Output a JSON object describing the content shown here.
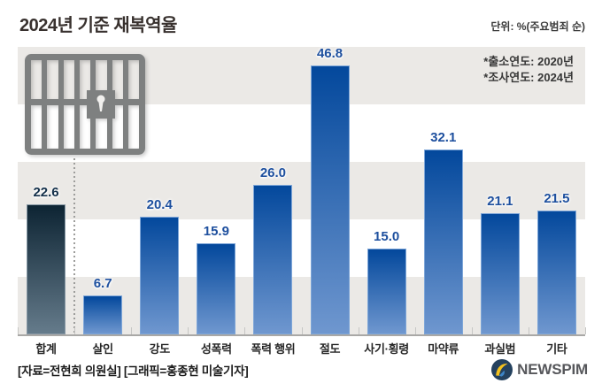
{
  "header": {
    "title": "2024년 기준 재복역율",
    "unit_label": "단위: %(주요범죄 순)"
  },
  "chart_data": {
    "type": "bar",
    "title": "2024년 기준 재복역율",
    "unit": "%",
    "categories": [
      "합계",
      "살인",
      "강도",
      "성폭력",
      "폭력 행위",
      "절도",
      "사기·횡령",
      "마약류",
      "과실범",
      "기타"
    ],
    "values": [
      22.6,
      6.7,
      20.4,
      15.9,
      26.0,
      46.8,
      15.0,
      32.1,
      21.1,
      21.5
    ],
    "ylim": [
      0,
      50
    ],
    "gridline_interval": 10,
    "grid_style": "alternating horizontal bands, no tick labels",
    "legend": "none",
    "notes": [
      "*출소연도: 2020년",
      "*조사연도: 2024년"
    ],
    "highlight_index": 0,
    "colors": {
      "bar_top": "#03489c",
      "bar_bottom": "#6f97cf",
      "bar_border": "#7ea6d8",
      "bar_total_top": "#0d2433",
      "bar_total_bottom": "#657b8b",
      "bar_total_border": "#8899a5",
      "label_blue": "#1d4f9e",
      "label_total": "#14304a",
      "band_gray": "#ebe9e6"
    }
  },
  "icons": {
    "prison": "prison-bars-icon",
    "logo": "newspim-logo-icon"
  },
  "footer": {
    "source": "[자료=전현희 의원실] [그래픽=홍종현 미술기자]",
    "logo_text": "NEWSPIM"
  }
}
